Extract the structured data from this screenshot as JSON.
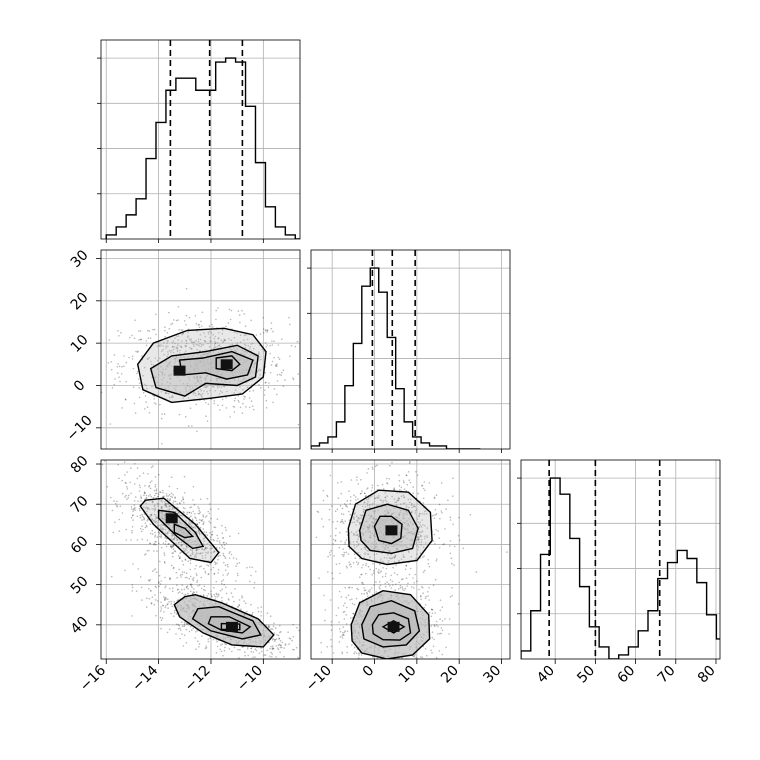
{
  "chart_data": {
    "type": "corner",
    "title": "",
    "grid": true,
    "n_params": 3,
    "axes": [
      {
        "ticks": [
          -16,
          -14,
          -12,
          -10
        ],
        "tick_labels": [
          "−16",
          "−14",
          "−12",
          "−10"
        ],
        "range": [
          -16.2,
          -8.6
        ]
      },
      {
        "ticks": [
          -10,
          0,
          10,
          20,
          30
        ],
        "tick_labels": [
          "−10",
          "0",
          "10",
          "20",
          "30"
        ],
        "range": [
          -15,
          32
        ]
      },
      {
        "ticks": [
          40,
          50,
          60,
          70,
          80
        ],
        "tick_labels": [
          "40",
          "50",
          "60",
          "70",
          "80"
        ],
        "range": [
          31.5,
          81
        ]
      }
    ],
    "histograms": [
      {
        "param": 0,
        "bin_start": -16.0,
        "bin_width": 0.38,
        "counts": [
          1,
          3,
          6,
          10,
          20,
          29,
          37,
          40,
          40,
          37,
          37,
          44,
          45,
          44,
          33,
          19,
          8,
          3,
          1,
          0
        ],
        "quantiles": [
          -13.55,
          -12.05,
          -10.8
        ]
      },
      {
        "param": 1,
        "bin_start": -15.0,
        "bin_width": 2.0,
        "counts": [
          1,
          2,
          4,
          9,
          21,
          35,
          54,
          60,
          52,
          37,
          20,
          9,
          4,
          2,
          1,
          1,
          0,
          0,
          0,
          0
        ],
        "quantiles": [
          -0.5,
          4.2,
          9.6
        ]
      },
      {
        "param": 2,
        "bin_start": 31.5,
        "bin_width": 2.43,
        "counts": [
          2,
          12,
          26,
          45,
          41,
          30,
          18,
          8,
          3,
          0,
          1,
          3,
          7,
          12,
          20,
          24,
          27,
          25,
          19,
          11,
          5,
          3,
          1,
          0
        ],
        "quantiles": [
          38.5,
          50.0,
          66.0
        ]
      }
    ],
    "pairs": [
      {
        "x_param": 0,
        "y_param": 1,
        "modes": [
          {
            "x": -11.4,
            "y": 5.0
          },
          {
            "x": -13.2,
            "y": 3.5
          }
        ],
        "contours": [
          [
            [
              -14.8,
              5
            ],
            [
              -14.2,
              10
            ],
            [
              -12.9,
              13
            ],
            [
              -11.5,
              13.5
            ],
            [
              -10.4,
              12
            ],
            [
              -9.9,
              8
            ],
            [
              -10,
              2
            ],
            [
              -10.8,
              -2
            ],
            [
              -12,
              -3
            ],
            [
              -13.5,
              -4
            ],
            [
              -14.6,
              -1
            ]
          ],
          [
            [
              -14.3,
              4
            ],
            [
              -13.5,
              7
            ],
            [
              -12.2,
              8
            ],
            [
              -11,
              9.5
            ],
            [
              -10.2,
              7
            ],
            [
              -10.3,
              2
            ],
            [
              -11,
              0
            ],
            [
              -12.2,
              0.5
            ],
            [
              -13,
              -2.5
            ],
            [
              -14.1,
              -0.5
            ]
          ],
          [
            [
              -13.2,
              6
            ],
            [
              -12.3,
              6.5
            ],
            [
              -11.2,
              8
            ],
            [
              -10.4,
              6
            ],
            [
              -10.6,
              2.5
            ],
            [
              -11.4,
              1.5
            ],
            [
              -12.2,
              3
            ],
            [
              -13.1,
              2.5
            ]
          ],
          [
            [
              -11.8,
              6.5
            ],
            [
              -11.2,
              7
            ],
            [
              -10.9,
              5
            ],
            [
              -11.2,
              3.5
            ],
            [
              -11.8,
              4
            ]
          ]
        ]
      },
      {
        "x_param": 0,
        "y_param": 2,
        "modes": [
          {
            "x": -13.5,
            "y": 66.5
          },
          {
            "x": -11.2,
            "y": 39.5
          }
        ],
        "contours": [
          [
            [
              -14.5,
              71
            ],
            [
              -13.8,
              71.5
            ],
            [
              -12.6,
              65
            ],
            [
              -11.7,
              58
            ],
            [
              -12,
              55.5
            ],
            [
              -12.8,
              56.5
            ],
            [
              -14.2,
              65
            ],
            [
              -14.7,
              69.5
            ]
          ],
          [
            [
              -14,
              68.5
            ],
            [
              -13.4,
              68
            ],
            [
              -12.6,
              63
            ],
            [
              -12.3,
              59.5
            ],
            [
              -12.7,
              59
            ],
            [
              -13.3,
              62
            ],
            [
              -14,
              66.5
            ]
          ],
          [
            [
              -13.4,
              65
            ],
            [
              -13,
              64
            ],
            [
              -12.7,
              62
            ],
            [
              -13,
              61.7
            ],
            [
              -13.4,
              63
            ]
          ],
          [
            [
              -13,
              47
            ],
            [
              -12.6,
              47.5
            ],
            [
              -11.6,
              45.5
            ],
            [
              -10.2,
              41.5
            ],
            [
              -9.6,
              37.5
            ],
            [
              -10,
              34.5
            ],
            [
              -11.2,
              35
            ],
            [
              -12.3,
              38
            ],
            [
              -13.2,
              42
            ],
            [
              -13.4,
              45
            ]
          ],
          [
            [
              -12.5,
              44
            ],
            [
              -11.7,
              44.5
            ],
            [
              -10.4,
              41
            ],
            [
              -10.1,
              37.5
            ],
            [
              -10.8,
              36.5
            ],
            [
              -12,
              38.5
            ],
            [
              -12.7,
              41.5
            ]
          ],
          [
            [
              -12,
              42
            ],
            [
              -11.3,
              42
            ],
            [
              -10.5,
              39.5
            ],
            [
              -10.8,
              38
            ],
            [
              -11.6,
              38.7
            ],
            [
              -12.1,
              40.3
            ]
          ],
          [
            [
              -11.6,
              40.3
            ],
            [
              -10.9,
              40.2
            ],
            [
              -10.9,
              38.8
            ],
            [
              -11.6,
              38.9
            ]
          ]
        ]
      },
      {
        "x_param": 1,
        "y_param": 2,
        "modes": [
          {
            "x": 4.0,
            "y": 63.5
          },
          {
            "x": 4.5,
            "y": 39.5
          }
        ],
        "contours": [
          [
            [
              -6.2,
              64
            ],
            [
              -4.5,
              70
            ],
            [
              1,
              73.5
            ],
            [
              8,
              73
            ],
            [
              13.2,
              68
            ],
            [
              13.6,
              61
            ],
            [
              10,
              56
            ],
            [
              3,
              55
            ],
            [
              -3,
              56.5
            ],
            [
              -6,
              59.5
            ]
          ],
          [
            [
              -3.5,
              63.5
            ],
            [
              -2,
              68.5
            ],
            [
              3,
              70
            ],
            [
              8,
              68.5
            ],
            [
              10.3,
              64
            ],
            [
              9,
              59
            ],
            [
              4,
              57.8
            ],
            [
              -1,
              58.5
            ],
            [
              -3.2,
              61
            ]
          ],
          [
            [
              0,
              64.5
            ],
            [
              1.3,
              67
            ],
            [
              4,
              67
            ],
            [
              6.5,
              65
            ],
            [
              6.2,
              61.5
            ],
            [
              4,
              60.2
            ],
            [
              1,
              61
            ]
          ],
          [
            [
              -5.5,
              40
            ],
            [
              -3.5,
              45.5
            ],
            [
              2,
              48.5
            ],
            [
              8.5,
              47.5
            ],
            [
              12.8,
              42.5
            ],
            [
              13,
              36.5
            ],
            [
              9,
              32.5
            ],
            [
              3,
              31.5
            ],
            [
              -3,
              33
            ],
            [
              -5.3,
              36
            ]
          ],
          [
            [
              -3,
              40
            ],
            [
              -1,
              44.5
            ],
            [
              4,
              46
            ],
            [
              9.5,
              43.5
            ],
            [
              10.6,
              38.5
            ],
            [
              7.5,
              35
            ],
            [
              2,
              34.5
            ],
            [
              -2.5,
              36.5
            ]
          ],
          [
            [
              -0.5,
              40
            ],
            [
              1,
              42.5
            ],
            [
              4.5,
              43
            ],
            [
              8,
              41.5
            ],
            [
              8.5,
              38
            ],
            [
              6,
              36.2
            ],
            [
              2,
              36.3
            ],
            [
              -0.3,
              37.8
            ]
          ],
          [
            [
              2,
              39.5
            ],
            [
              4.5,
              41
            ],
            [
              7,
              39.5
            ],
            [
              4.5,
              38
            ]
          ]
        ]
      }
    ]
  }
}
